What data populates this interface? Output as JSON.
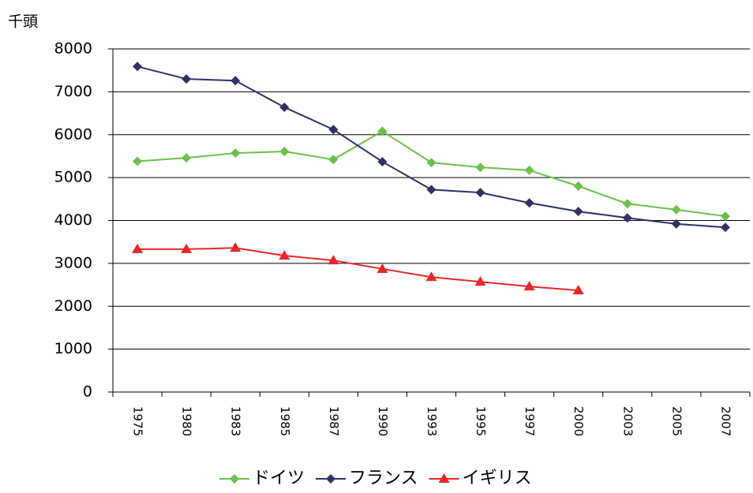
{
  "chart_data": {
    "type": "line",
    "y_label": "千頭",
    "categories": [
      "1975",
      "1980",
      "1983",
      "1985",
      "1987",
      "1990",
      "1993",
      "1995",
      "1997",
      "2000",
      "2003",
      "2005",
      "2007"
    ],
    "series": [
      {
        "name": "ドイツ",
        "color": "#6cc04a",
        "marker": "diamond",
        "values": [
          5380,
          5460,
          5570,
          5610,
          5420,
          6080,
          5350,
          5240,
          5170,
          4800,
          4390,
          4250,
          4100
        ]
      },
      {
        "name": "フランス",
        "color": "#2e3266",
        "marker": "diamond",
        "values": [
          7590,
          7300,
          7260,
          6640,
          6120,
          5370,
          4720,
          4650,
          4410,
          4210,
          4060,
          3920,
          3840
        ]
      },
      {
        "name": "イギリス",
        "color": "#e8262a",
        "marker": "triangle",
        "values": [
          3330,
          3330,
          3360,
          3180,
          3070,
          2870,
          2680,
          2570,
          2460,
          2370,
          null,
          null,
          null
        ]
      }
    ],
    "ylim": [
      0,
      8000
    ],
    "yticks": [
      0,
      1000,
      2000,
      3000,
      4000,
      5000,
      6000,
      7000,
      8000
    ],
    "grid": true,
    "legend": "bottom"
  }
}
